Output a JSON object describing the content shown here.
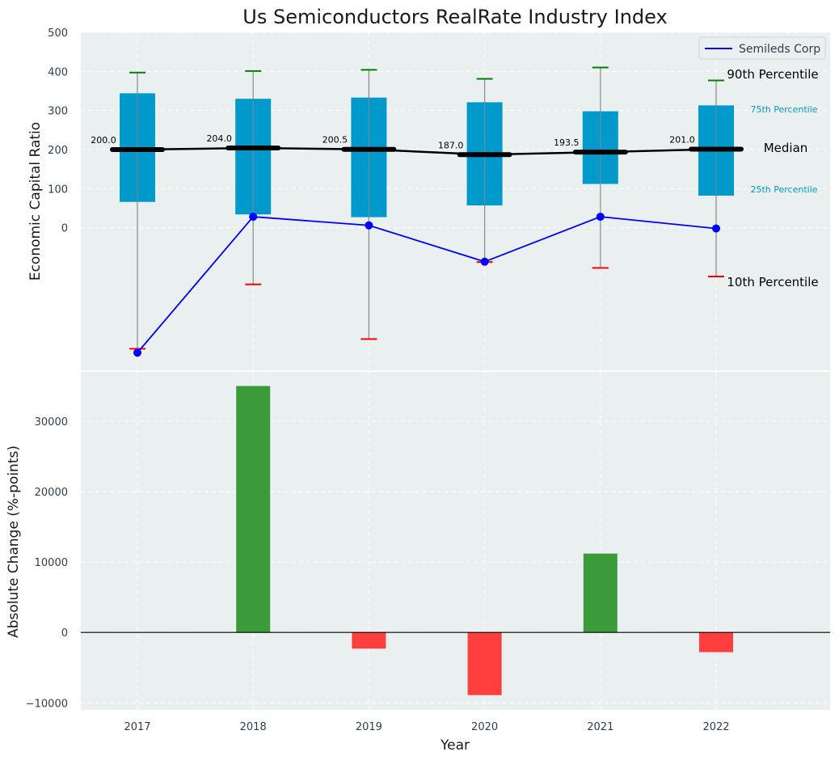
{
  "title": "Us Semiconductors RealRate Industry Index",
  "colors": {
    "box": "#0099cc",
    "whisker_top": "#008000",
    "whisker_bottom": "#ff0000",
    "company_line": "#0000ff",
    "median_line": "#000000",
    "bar_positive": "#3b9b3b",
    "bar_negative": "#ff3e3e",
    "plot_bg": "#eaeff0",
    "whisker_line": "#8a8a8a"
  },
  "legend": {
    "label": "Semileds Corp",
    "position": "top-right"
  },
  "labels": {
    "p90": "90th Percentile",
    "p75": "75th Percentile",
    "median": "Median",
    "p25": "25th Percentile",
    "p10": "10th Percentile"
  },
  "chart_data": [
    {
      "type": "box",
      "years": [
        "2017",
        "2018",
        "2019",
        "2020",
        "2021",
        "2022"
      ],
      "p90": [
        397,
        401,
        404,
        381,
        410,
        377
      ],
      "p75": [
        344,
        330,
        333,
        321,
        298,
        313
      ],
      "median": [
        200.0,
        204.0,
        200.5,
        187.0,
        193.5,
        201.0
      ],
      "median_labels": [
        "200.0",
        "204.0",
        "200.5",
        "187.0",
        "193.5",
        "201.0"
      ],
      "p25": [
        66,
        34,
        27,
        57,
        112,
        82
      ],
      "p10": [
        -310,
        -145,
        -285,
        -88,
        -103,
        -125
      ],
      "company": {
        "name": "Semileds Corp",
        "values": [
          -320,
          28,
          6,
          -87,
          28,
          -2
        ]
      },
      "ylabel": "Economic Capital Ratio",
      "yticks": [
        0,
        100,
        200,
        300,
        400,
        500
      ],
      "ylim": [
        -365,
        500
      ],
      "grid": true
    },
    {
      "type": "bar",
      "categories": [
        "2017",
        "2018",
        "2019",
        "2020",
        "2021",
        "2022"
      ],
      "values": [
        0,
        35000,
        -2300,
        -8900,
        11200,
        -2800
      ],
      "ylabel": "Absolute Change (%-points)",
      "xlabel": "Year",
      "yticks": [
        -10000,
        0,
        10000,
        20000,
        30000
      ],
      "ylim": [
        -11000,
        37000
      ],
      "grid": true
    }
  ]
}
